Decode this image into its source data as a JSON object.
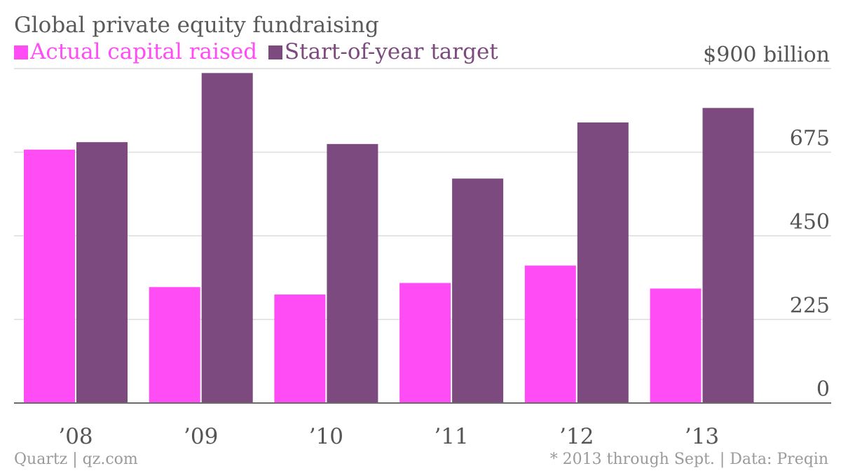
{
  "title": "Global private equity fundraising",
  "footer_left": "Quartz | qz.com",
  "footer_right": "* 2013 through Sept. | Data: Preqin",
  "colors": {
    "actual": "#ff4cf5",
    "target": "#7d4a7f",
    "grid": "#dcdcdc",
    "axis": "#6a6a6a",
    "tick": "#555555"
  },
  "chart_data": {
    "type": "bar",
    "categories": [
      "’08",
      "’09",
      "’10",
      "’11",
      "’12",
      "’13"
    ],
    "series": [
      {
        "name": "Actual capital raised",
        "color": "#ff4cf5",
        "values": [
          682,
          312,
          292,
          323,
          370,
          308
        ]
      },
      {
        "name": "Start-of-year target",
        "color": "#7d4a7f",
        "values": [
          702,
          888,
          697,
          604,
          755,
          794
        ]
      }
    ],
    "ylim": [
      0,
      900
    ],
    "yticks": [
      0,
      225,
      450,
      675,
      900
    ],
    "ytick_labels": [
      "0",
      "225",
      "450",
      "675",
      "$900 billion"
    ],
    "grid": true,
    "y_axis_position": "right",
    "legend": "top-left"
  }
}
